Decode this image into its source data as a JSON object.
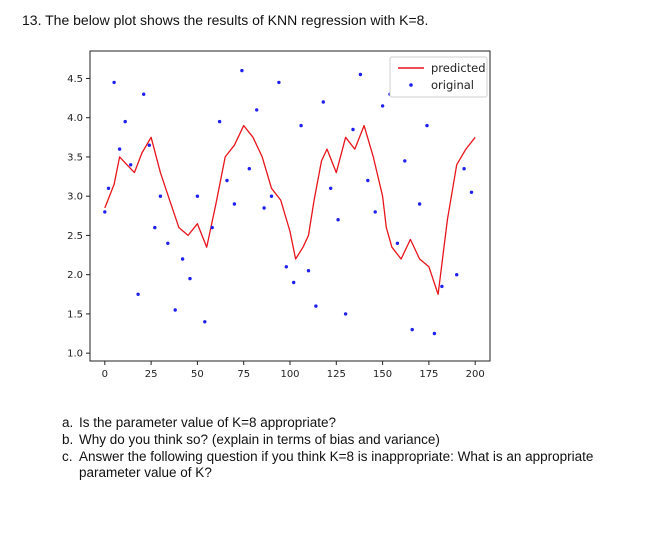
{
  "question": {
    "number": "13.",
    "text": "The below plot shows the results of KNN regression with K=8."
  },
  "subquestions": [
    {
      "label": "a.",
      "text": "Is the parameter value of K=8 appropriate?"
    },
    {
      "label": "b.",
      "text": "Why do you think so? (explain in terms of bias and variance)"
    },
    {
      "label": "c.",
      "text": "Answer the following question if you think K=8 is inappropriate: What is an appropriate parameter value of K?"
    }
  ],
  "chart_data": {
    "type": "line",
    "title": "",
    "xlabel": "",
    "ylabel": "",
    "xlim": [
      -8,
      208
    ],
    "ylim": [
      0.9,
      4.85
    ],
    "xticks": [
      "0",
      "25",
      "50",
      "75",
      "100",
      "125",
      "150",
      "175",
      "200"
    ],
    "yticks": [
      "1.0",
      "1.5",
      "2.0",
      "2.5",
      "3.0",
      "3.5",
      "4.0",
      "4.5"
    ],
    "legend_position": "top-right",
    "grid": false,
    "series": [
      {
        "name": "predicted",
        "kind": "line",
        "color": "#e8141b",
        "x": [
          0,
          5,
          8,
          12,
          16,
          20,
          25,
          30,
          35,
          40,
          45,
          50,
          55,
          60,
          65,
          70,
          75,
          80,
          85,
          90,
          95,
          100,
          103,
          107,
          110,
          113,
          117,
          120,
          125,
          130,
          135,
          140,
          145,
          150,
          152,
          155,
          160,
          165,
          170,
          175,
          180,
          185,
          190,
          195,
          200
        ],
        "y": [
          2.85,
          3.15,
          3.5,
          3.4,
          3.3,
          3.55,
          3.75,
          3.3,
          2.95,
          2.6,
          2.5,
          2.65,
          2.35,
          2.9,
          3.5,
          3.65,
          3.9,
          3.75,
          3.5,
          3.1,
          2.95,
          2.55,
          2.2,
          2.35,
          2.5,
          2.95,
          3.45,
          3.6,
          3.3,
          3.75,
          3.6,
          3.9,
          3.5,
          3.0,
          2.6,
          2.35,
          2.2,
          2.45,
          2.2,
          2.1,
          1.75,
          2.7,
          3.4,
          3.6,
          3.75
        ]
      },
      {
        "name": "original",
        "kind": "scatter",
        "color": "#1f1ff0",
        "x": [
          0,
          2,
          5,
          8,
          11,
          14,
          18,
          21,
          24,
          27,
          30,
          34,
          38,
          42,
          46,
          50,
          54,
          58,
          62,
          66,
          70,
          74,
          78,
          82,
          86,
          90,
          94,
          98,
          102,
          106,
          110,
          114,
          118,
          122,
          126,
          130,
          134,
          138,
          142,
          146,
          150,
          154,
          158,
          162,
          166,
          170,
          174,
          178,
          182,
          186,
          190,
          194,
          198
        ],
        "y": [
          2.8,
          3.1,
          4.45,
          3.6,
          3.95,
          3.4,
          1.75,
          4.3,
          3.65,
          2.6,
          3.0,
          2.4,
          1.55,
          2.2,
          1.95,
          3.0,
          1.4,
          2.6,
          3.95,
          3.2,
          2.9,
          4.6,
          3.35,
          4.1,
          2.85,
          3.0,
          4.45,
          2.1,
          1.9,
          3.9,
          2.05,
          1.6,
          4.2,
          3.1,
          2.7,
          1.5,
          3.85,
          4.55,
          3.2,
          2.8,
          4.15,
          4.3,
          2.4,
          3.45,
          1.3,
          2.9,
          3.9,
          1.25,
          1.85,
          4.5,
          2.0,
          3.35,
          3.05
        ]
      }
    ]
  }
}
